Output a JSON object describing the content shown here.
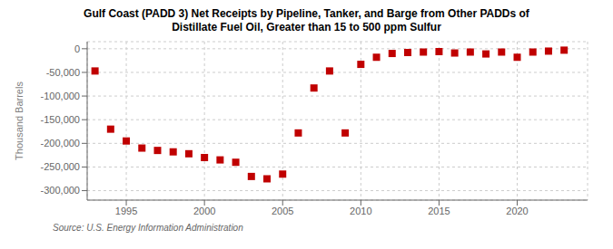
{
  "chart_data": {
    "type": "scatter",
    "title": "Gulf Coast (PADD 3) Net Receipts by Pipeline, Tanker, and Barge from Other PADDs of\nDistillate Fuel Oil, Greater than 15 to 500 ppm Sulfur",
    "ylabel": "Thousand Barrels",
    "annotation": "Source: U.S. Energy Information Administration",
    "x": [
      1993,
      1994,
      1995,
      1996,
      1997,
      1998,
      1999,
      2000,
      2001,
      2002,
      2003,
      2004,
      2005,
      2006,
      2007,
      2008,
      2009,
      2010,
      2011,
      2012,
      2013,
      2014,
      2015,
      2016,
      2017,
      2018,
      2019,
      2020,
      2021,
      2022,
      2023
    ],
    "values": [
      -47000,
      -170000,
      -195000,
      -210000,
      -215000,
      -218000,
      -222000,
      -230000,
      -235000,
      -240000,
      -270000,
      -275000,
      -265000,
      -178000,
      -83000,
      -47000,
      -178000,
      -33000,
      -18000,
      -10000,
      -8000,
      -7000,
      -6000,
      -9000,
      -7000,
      -11000,
      -7000,
      -18000,
      -7000,
      -5000,
      -3000
    ],
    "color": "#c00000",
    "marker": "square",
    "xlim": [
      1992.5,
      2024.5
    ],
    "xticks": [
      1995,
      2000,
      2005,
      2010,
      2015,
      2020
    ],
    "ylim": [
      -320000,
      15000
    ],
    "yticks": [
      0,
      {
        "value": -50000,
        "label": "-50,000"
      },
      {
        "value": -100000,
        "label": "-100,000"
      },
      {
        "value": -150000,
        "label": "-150,000"
      },
      {
        "value": -200000,
        "label": "-200,000"
      },
      {
        "value": -250000,
        "label": "-250,000"
      },
      {
        "value": -300000,
        "label": "-300,000"
      }
    ],
    "grid": true
  }
}
